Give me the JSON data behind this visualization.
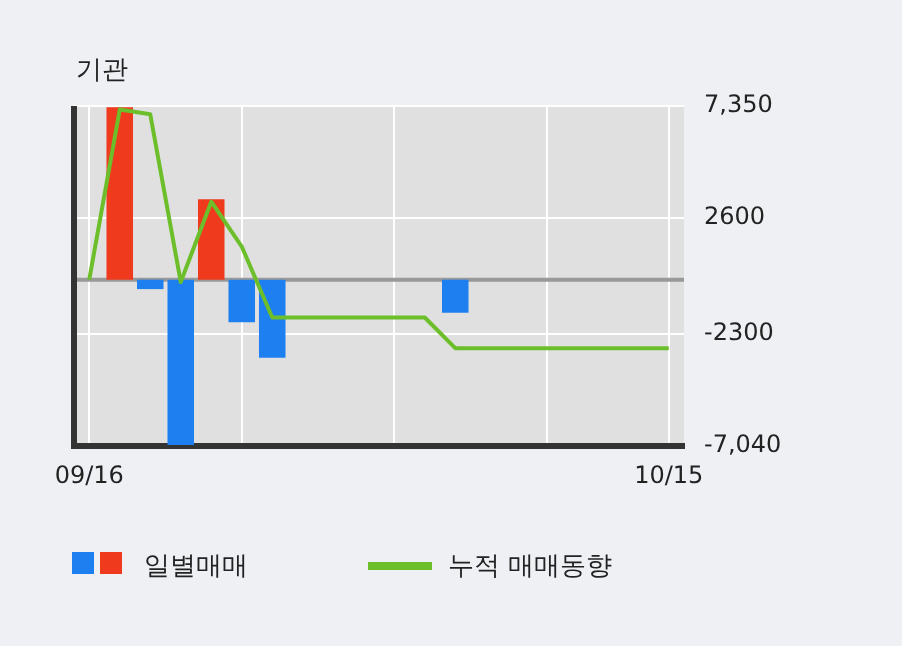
{
  "chart_data": {
    "type": "bar",
    "title": "기관",
    "categories": [
      "09/16",
      null,
      null,
      null,
      null,
      null,
      null,
      null,
      null,
      null,
      null,
      null,
      null,
      null,
      null,
      null,
      null,
      null,
      null,
      "10/15"
    ],
    "series": [
      {
        "name": "일별매매",
        "colors": [
          "#1e7ff0",
          "#f03a1e",
          "#1e7ff0",
          "#1e7ff0",
          "#f03a1e",
          "#1e7ff0",
          "#1e7ff0",
          "#1e7ff0",
          "#1e7ff0",
          "#1e7ff0",
          "#1e7ff0",
          "#1e7ff0",
          "#1e7ff0",
          "#1e7ff0",
          "#1e7ff0",
          "#1e7ff0",
          "#1e7ff0",
          "#1e7ff0",
          "#1e7ff0",
          "#1e7ff0"
        ],
        "values": [
          null,
          7300,
          -400,
          -7000,
          3400,
          -1800,
          -3300,
          null,
          null,
          null,
          null,
          null,
          -1400,
          null,
          null,
          null,
          null,
          null,
          null,
          null
        ]
      },
      {
        "type": "line",
        "name": "누적 매매동향",
        "color": "#6cbf2a",
        "values": [
          0,
          7200,
          7000,
          -100,
          3300,
          1400,
          -1600,
          -1600,
          -1600,
          -1600,
          -1600,
          -1600,
          -2900,
          -2900,
          -2900,
          -2900,
          -2900,
          -2900,
          -2900,
          -2900
        ]
      }
    ],
    "ylim": [
      -7040,
      7350
    ],
    "yticks": [
      {
        "value": 7350,
        "label": "7,350"
      },
      2600,
      -2300,
      {
        "value": -7040,
        "label": "-7,040"
      }
    ],
    "grid": true,
    "legend": "bottom",
    "marker": "none",
    "ref_lines": [
      {
        "axis": "y",
        "value": 0,
        "color": "#999999"
      }
    ]
  }
}
